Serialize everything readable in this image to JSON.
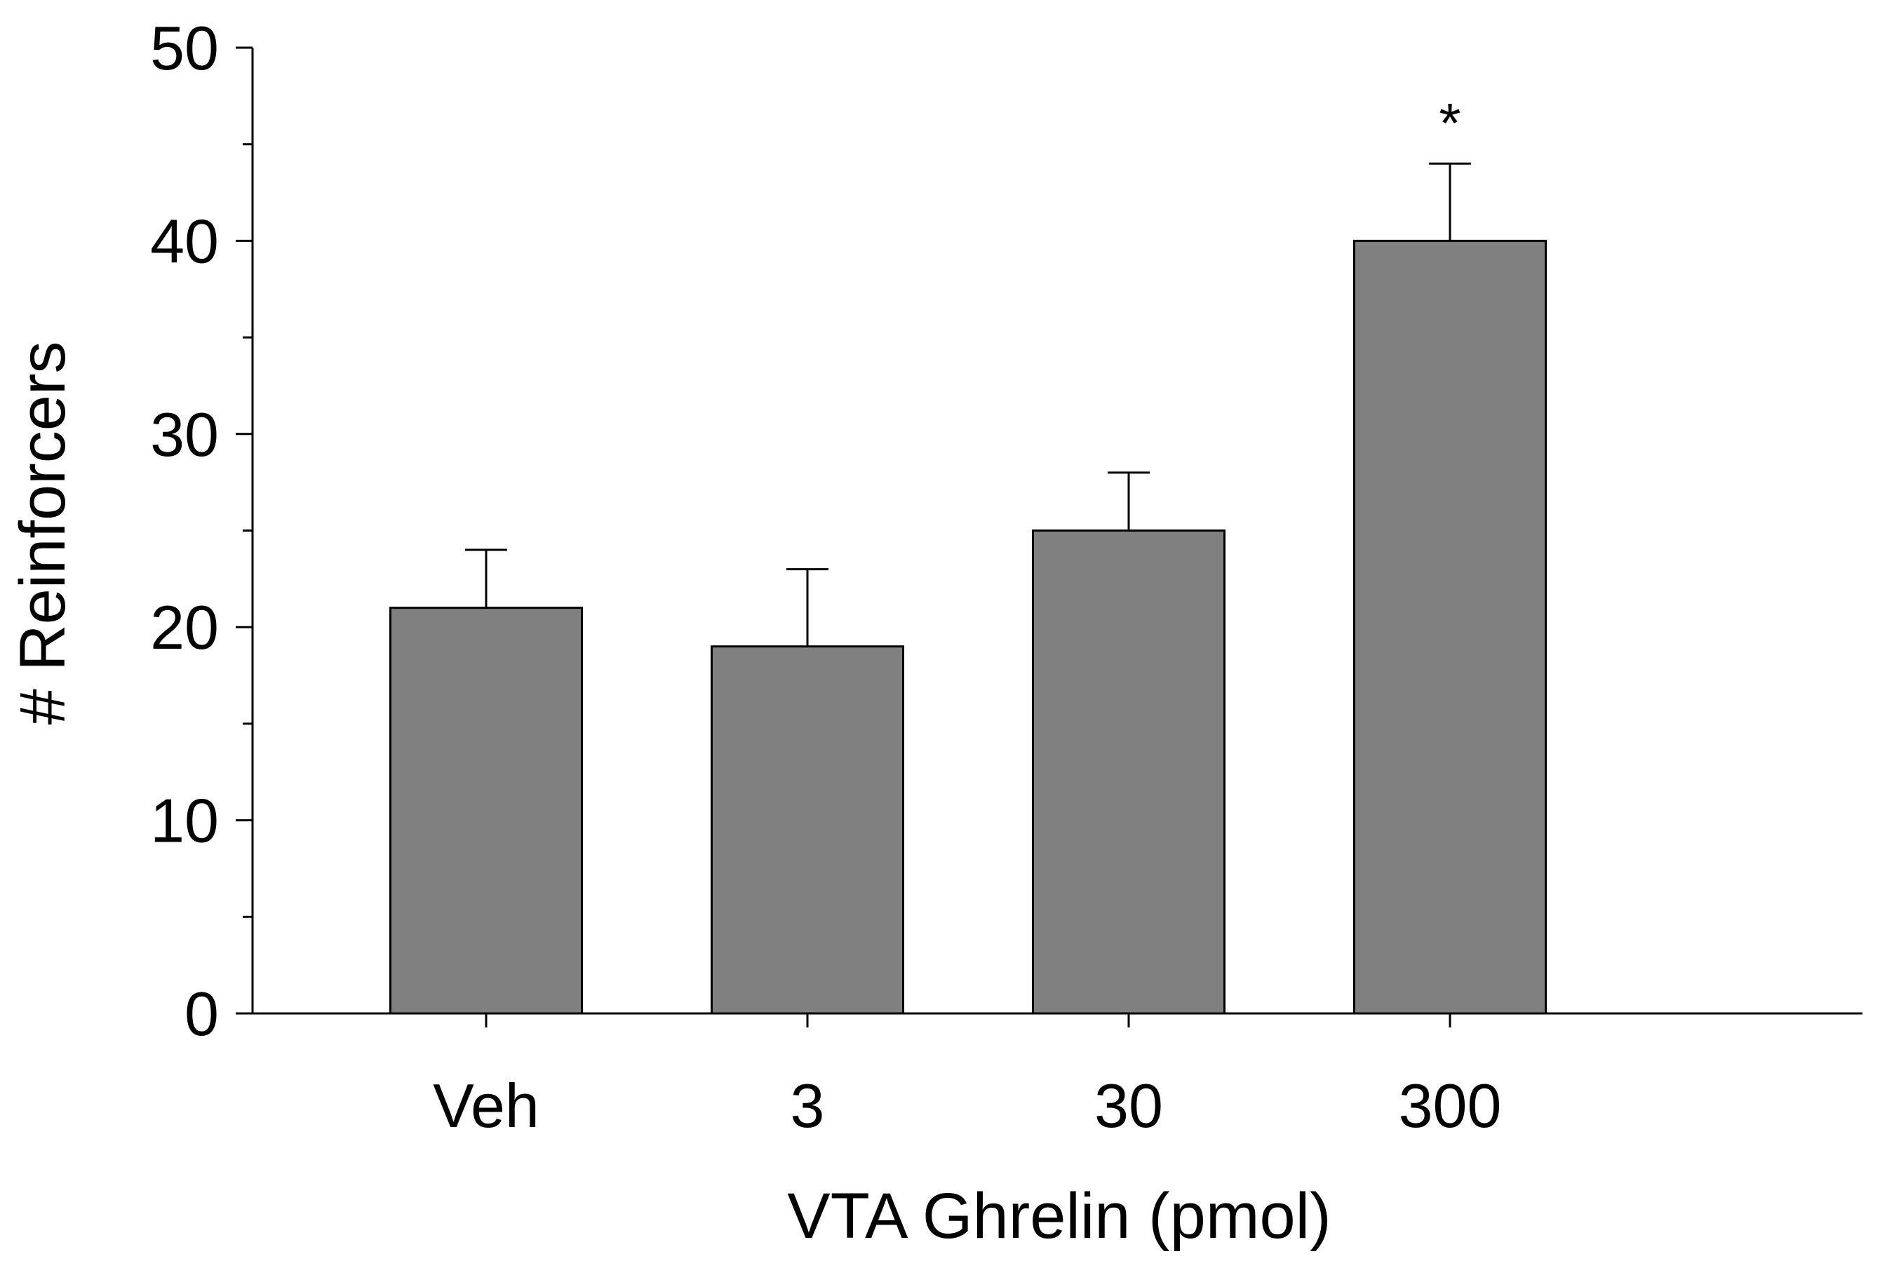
{
  "chart_data": {
    "type": "bar",
    "title": "",
    "xlabel": "VTA Ghrelin (pmol)",
    "ylabel": "# Reinforcers",
    "categories": [
      "Veh",
      "3",
      "30",
      "300"
    ],
    "values": [
      21,
      19,
      25,
      40
    ],
    "errors": [
      3,
      4,
      3,
      4
    ],
    "significance": [
      "",
      "",
      "",
      "*"
    ],
    "ylim": [
      0,
      50
    ],
    "yticks": [
      0,
      10,
      20,
      30,
      40,
      50
    ],
    "minor_ytick_step": 5,
    "bar_color": "#808080",
    "edge_color": "#000000",
    "grid": false,
    "legend": "none"
  }
}
